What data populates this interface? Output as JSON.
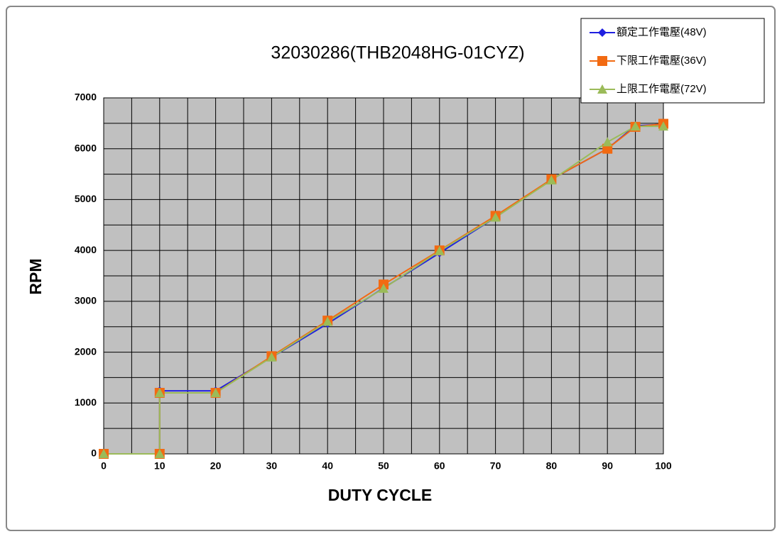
{
  "chart_data": {
    "type": "line",
    "title": "32030286(THB2048HG-01CYZ)",
    "x_label": "DUTY CYCLE",
    "y_label": "RPM",
    "x": [
      0,
      10,
      10,
      20,
      30,
      40,
      50,
      60,
      70,
      80,
      90,
      95,
      100
    ],
    "series": [
      {
        "name": "額定工作電壓(48V)",
        "color": "#1f1fe0",
        "marker": "diamond",
        "values": [
          0,
          0,
          1240,
          1240,
          1900,
          2560,
          3260,
          3950,
          4650,
          5400,
          6000,
          6450,
          6480
        ]
      },
      {
        "name": "下限工作電壓(36V)",
        "color": "#f26a12",
        "marker": "square",
        "values": [
          0,
          0,
          1200,
          1200,
          1920,
          2620,
          3330,
          4000,
          4680,
          5400,
          6000,
          6430,
          6490
        ]
      },
      {
        "name": "上限工作電壓(72V)",
        "color": "#9bbb59",
        "marker": "triangle",
        "values": [
          0,
          0,
          1200,
          1200,
          1900,
          2600,
          3250,
          3990,
          4650,
          5380,
          6130,
          6440,
          6440
        ]
      }
    ],
    "xlim": [
      0,
      100
    ],
    "ylim": [
      0,
      7000
    ],
    "xticks": [
      0,
      10,
      20,
      30,
      40,
      50,
      60,
      70,
      80,
      90,
      100
    ],
    "yticks": [
      0,
      1000,
      2000,
      3000,
      4000,
      5000,
      6000,
      7000
    ],
    "x_minor_grid": [
      5,
      15,
      25,
      35,
      45,
      55,
      65,
      75,
      85,
      95
    ],
    "y_minor_grid": [
      500,
      1500,
      2500,
      3500,
      4500,
      5500,
      6500
    ],
    "grid": true,
    "plot_background": "#c0c0c0",
    "legend": "top-right"
  }
}
